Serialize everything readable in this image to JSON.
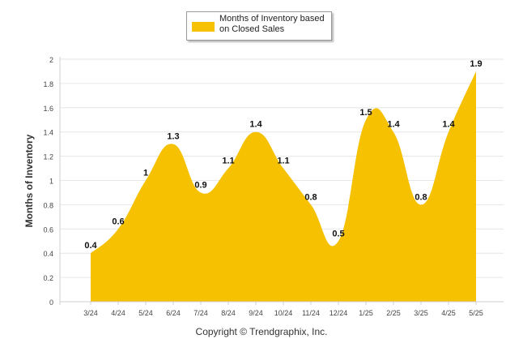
{
  "chart_data": {
    "type": "area",
    "categories": [
      "3/24",
      "4/24",
      "5/24",
      "6/24",
      "7/24",
      "8/24",
      "9/24",
      "10/24",
      "11/24",
      "12/24",
      "1/25",
      "2/25",
      "3/25",
      "4/25",
      "5/25"
    ],
    "series": [
      {
        "name": "Months of Inventory based on Closed Sales",
        "values": [
          0.4,
          0.6,
          1,
          1.3,
          0.9,
          1.1,
          1.4,
          1.1,
          0.8,
          0.5,
          1.5,
          1.4,
          0.8,
          1.4,
          1.9
        ]
      }
    ],
    "data_labels": [
      "0.4",
      "0.6",
      "1",
      "1.3",
      "0.9",
      "1.1",
      "1.4",
      "1.1",
      "0.8",
      "0.5",
      "1.5",
      "1.4",
      "0.8",
      "1.4",
      "1.9"
    ],
    "ylabel": "Months of Inventory",
    "xlabel": "",
    "title": "",
    "ylim": [
      0,
      2
    ],
    "y_ticks": [
      "0",
      "0.2",
      "0.4",
      "0.6",
      "0.8",
      "1",
      "1.2",
      "1.4",
      "1.6",
      "1.8",
      "2"
    ],
    "grid": true,
    "legend_position": "top-center",
    "color": "#F5C100"
  },
  "footer": {
    "copyright": "Copyright © Trendgraphix, Inc."
  }
}
